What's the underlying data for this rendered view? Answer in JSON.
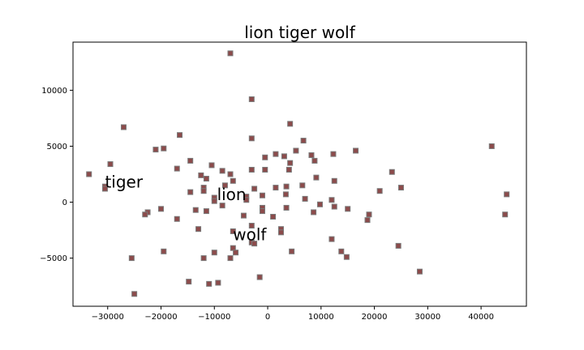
{
  "chart_data": {
    "type": "scatter",
    "title": "lion tiger wolf",
    "xlabel": "",
    "ylabel": "",
    "xlim": [
      -36500,
      48500
    ],
    "ylim": [
      -9300,
      14300
    ],
    "x_ticks": [
      -30000,
      -20000,
      -10000,
      0,
      10000,
      20000,
      30000,
      40000
    ],
    "x_tick_labels": [
      "−30000",
      "−20000",
      "−10000",
      "0",
      "10000",
      "20000",
      "30000",
      "40000"
    ],
    "y_ticks": [
      -5000,
      0,
      5000,
      10000
    ],
    "y_tick_labels": [
      "−5000",
      "0",
      "5000",
      "10000"
    ],
    "grid": false,
    "marker": "square",
    "marker_color": "#8c4b4b",
    "points": [
      {
        "x": -7000,
        "y": 13300
      },
      {
        "x": -3000,
        "y": 9200
      },
      {
        "x": -27000,
        "y": 6700
      },
      {
        "x": -16500,
        "y": 6000
      },
      {
        "x": 4200,
        "y": 7000
      },
      {
        "x": -3000,
        "y": 5700
      },
      {
        "x": 6700,
        "y": 5500
      },
      {
        "x": -21000,
        "y": 4700
      },
      {
        "x": -19500,
        "y": 4800
      },
      {
        "x": 5300,
        "y": 4600
      },
      {
        "x": 16500,
        "y": 4600
      },
      {
        "x": 42000,
        "y": 5000
      },
      {
        "x": 1500,
        "y": 4300
      },
      {
        "x": 3100,
        "y": 4100
      },
      {
        "x": 8200,
        "y": 4200
      },
      {
        "x": 12300,
        "y": 4300
      },
      {
        "x": -500,
        "y": 4000
      },
      {
        "x": -14500,
        "y": 3700
      },
      {
        "x": -29500,
        "y": 3400
      },
      {
        "x": 4200,
        "y": 3500
      },
      {
        "x": 8800,
        "y": 3700
      },
      {
        "x": -10500,
        "y": 3300
      },
      {
        "x": -17000,
        "y": 3000
      },
      {
        "x": -8500,
        "y": 2800
      },
      {
        "x": -3000,
        "y": 2900
      },
      {
        "x": -500,
        "y": 2900
      },
      {
        "x": 4000,
        "y": 2900
      },
      {
        "x": -33500,
        "y": 2500
      },
      {
        "x": -12500,
        "y": 2400
      },
      {
        "x": -7000,
        "y": 2500
      },
      {
        "x": -11500,
        "y": 2100
      },
      {
        "x": 9100,
        "y": 2200
      },
      {
        "x": 23300,
        "y": 2700
      },
      {
        "x": -6500,
        "y": 1900
      },
      {
        "x": 12500,
        "y": 1900
      },
      {
        "x": -8000,
        "y": 1500
      },
      {
        "x": 1500,
        "y": 1300
      },
      {
        "x": 6500,
        "y": 1500
      },
      {
        "x": 3500,
        "y": 1400
      },
      {
        "x": -30500,
        "y": 1400
      },
      {
        "x": -30500,
        "y": 1200
      },
      {
        "x": -12000,
        "y": 1300
      },
      {
        "x": -12000,
        "y": 1000
      },
      {
        "x": -14500,
        "y": 900
      },
      {
        "x": -2500,
        "y": 1200
      },
      {
        "x": 21000,
        "y": 1000
      },
      {
        "x": 25000,
        "y": 1300
      },
      {
        "x": 44800,
        "y": 700
      },
      {
        "x": -10000,
        "y": 400
      },
      {
        "x": -10000,
        "y": 100
      },
      {
        "x": -4000,
        "y": 500
      },
      {
        "x": -4000,
        "y": 200
      },
      {
        "x": -1000,
        "y": 600
      },
      {
        "x": 3400,
        "y": 700
      },
      {
        "x": 7000,
        "y": 300
      },
      {
        "x": 12000,
        "y": 200
      },
      {
        "x": 9800,
        "y": -200
      },
      {
        "x": -8500,
        "y": -300
      },
      {
        "x": -1000,
        "y": -500
      },
      {
        "x": -1000,
        "y": -800
      },
      {
        "x": 3500,
        "y": -500
      },
      {
        "x": 12500,
        "y": -400
      },
      {
        "x": 15000,
        "y": -600
      },
      {
        "x": -20000,
        "y": -600
      },
      {
        "x": -13500,
        "y": -700
      },
      {
        "x": -11500,
        "y": -800
      },
      {
        "x": -22500,
        "y": -900
      },
      {
        "x": -23000,
        "y": -1100
      },
      {
        "x": -4500,
        "y": -1200
      },
      {
        "x": 1000,
        "y": -1300
      },
      {
        "x": 8600,
        "y": -900
      },
      {
        "x": 19000,
        "y": -1100
      },
      {
        "x": 18700,
        "y": -1600
      },
      {
        "x": 44500,
        "y": -1100
      },
      {
        "x": -17000,
        "y": -1500
      },
      {
        "x": -3000,
        "y": -2100
      },
      {
        "x": -13000,
        "y": -2400
      },
      {
        "x": 2500,
        "y": -2400
      },
      {
        "x": 2500,
        "y": -2700
      },
      {
        "x": -6500,
        "y": -2600
      },
      {
        "x": -3000,
        "y": -3600
      },
      {
        "x": -2500,
        "y": -3700
      },
      {
        "x": 12000,
        "y": -3300
      },
      {
        "x": 24500,
        "y": -3900
      },
      {
        "x": -6500,
        "y": -4100
      },
      {
        "x": -6000,
        "y": -4500
      },
      {
        "x": -19500,
        "y": -4400
      },
      {
        "x": -10000,
        "y": -4500
      },
      {
        "x": 4500,
        "y": -4400
      },
      {
        "x": 13800,
        "y": -4400
      },
      {
        "x": 14800,
        "y": -4900
      },
      {
        "x": -25500,
        "y": -5000
      },
      {
        "x": -12000,
        "y": -5000
      },
      {
        "x": -7000,
        "y": -5000
      },
      {
        "x": 28500,
        "y": -6200
      },
      {
        "x": -1500,
        "y": -6700
      },
      {
        "x": -14800,
        "y": -7100
      },
      {
        "x": -11000,
        "y": -7300
      },
      {
        "x": -9300,
        "y": -7200
      },
      {
        "x": -25000,
        "y": -8200
      }
    ],
    "annotations": [
      {
        "text": "tiger",
        "x": -30500,
        "y": 1300
      },
      {
        "text": "lion",
        "x": -9500,
        "y": 200
      },
      {
        "text": "wolf",
        "x": -6500,
        "y": -3400
      }
    ]
  }
}
